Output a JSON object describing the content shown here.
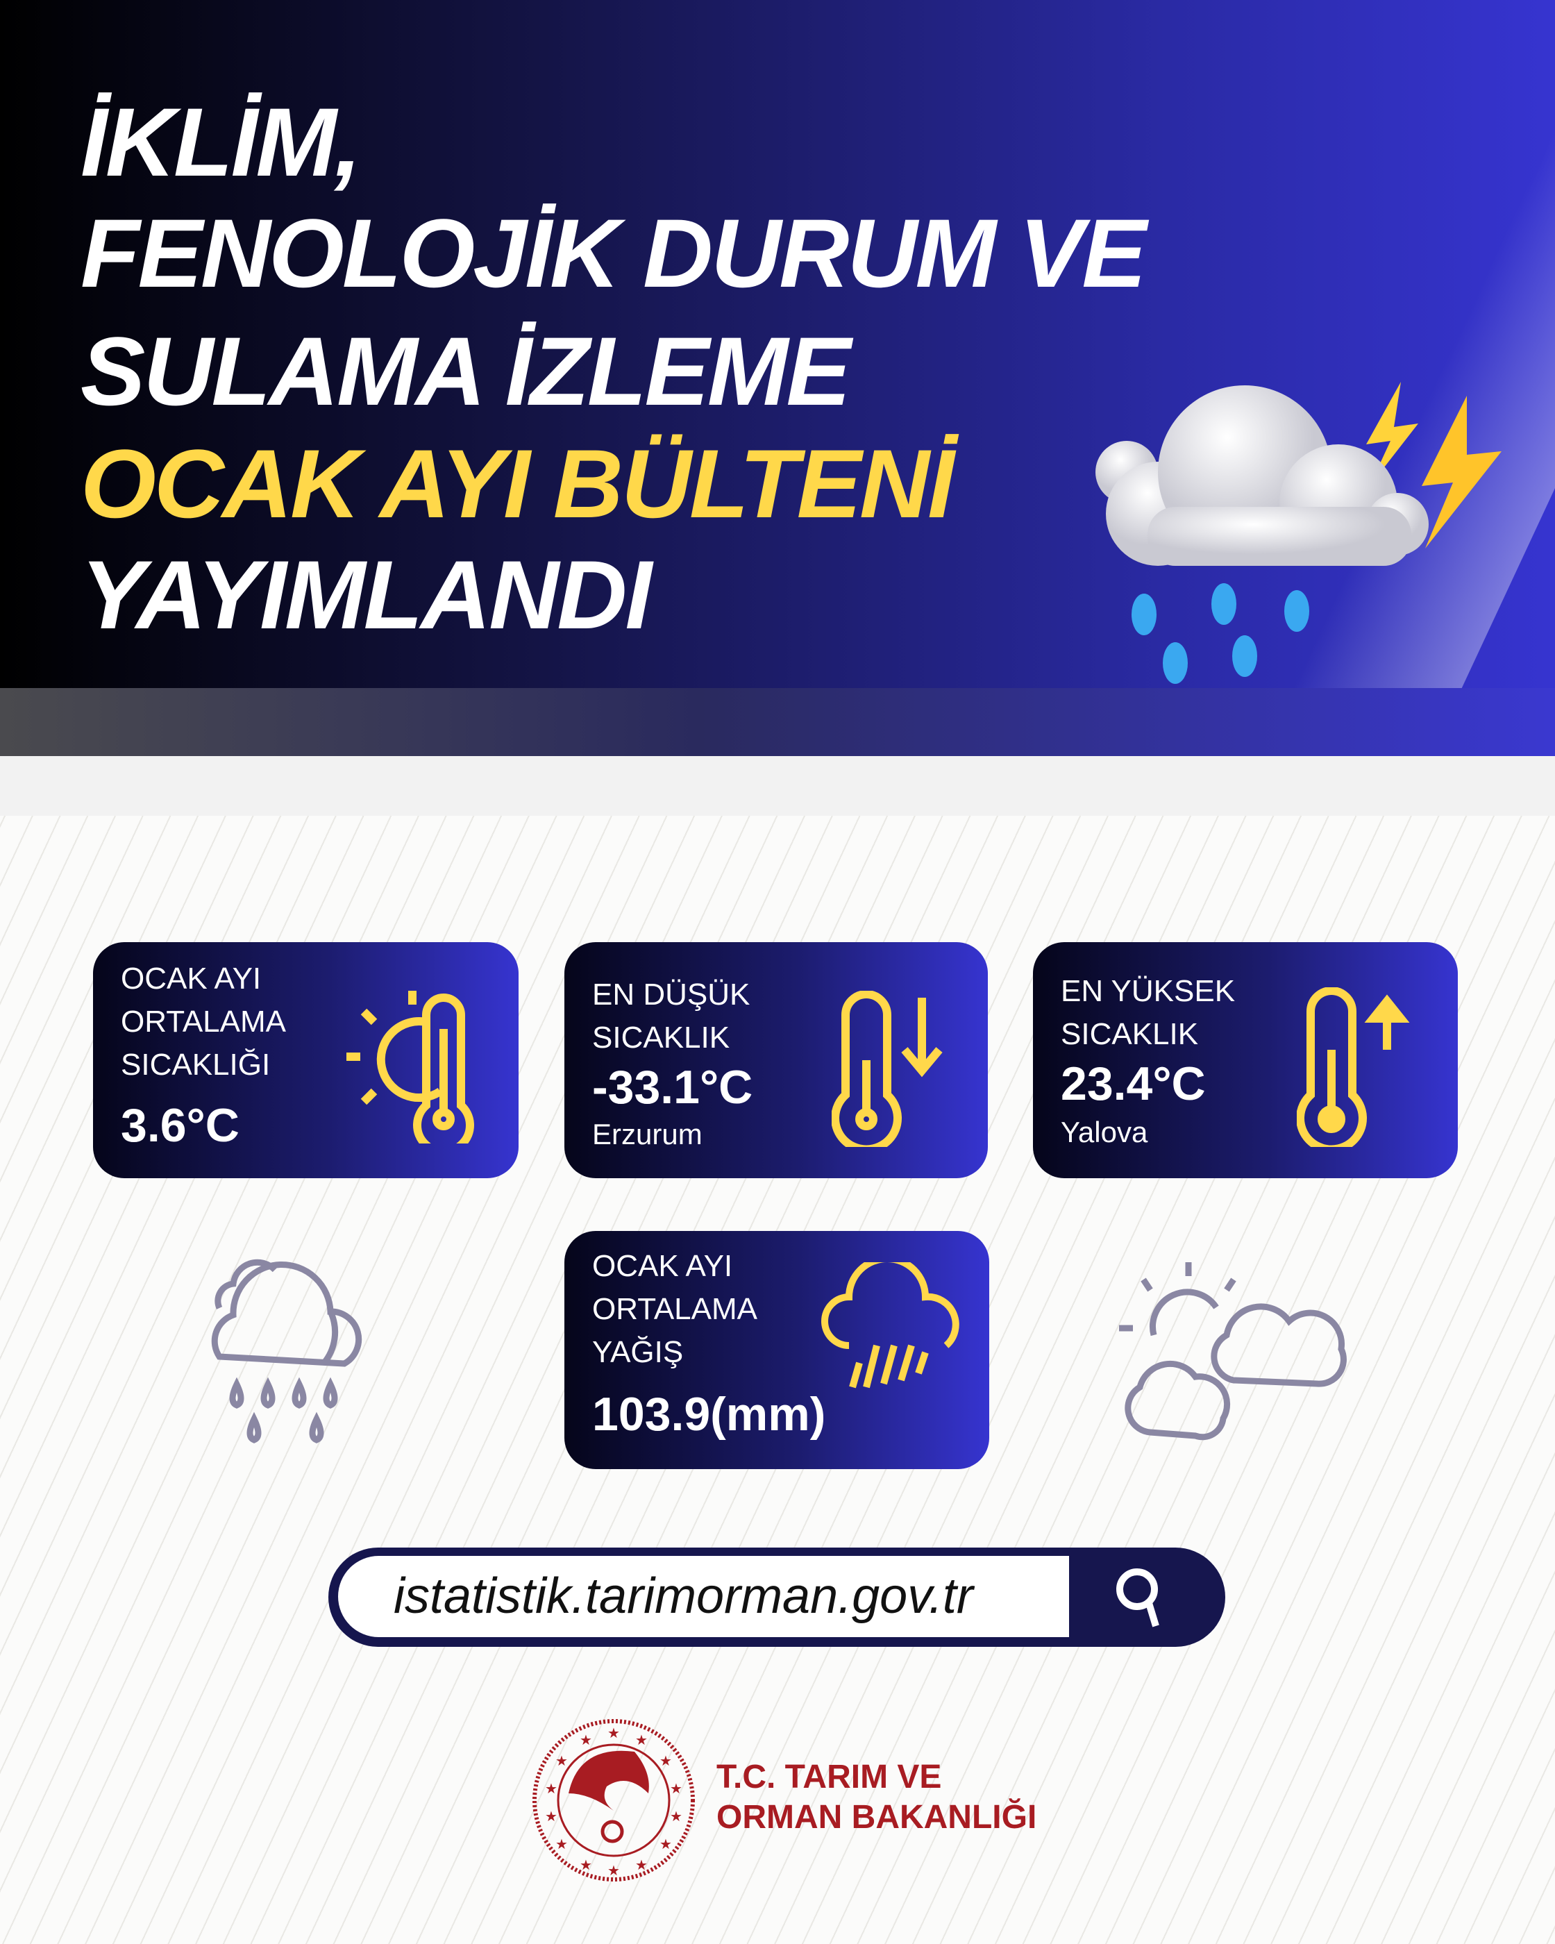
{
  "header": {
    "title_lines": [
      "İKLİM,",
      "FENOLOJİK DURUM VE",
      "SULAMA İZLEME"
    ],
    "highlight": "OCAK AYI BÜLTENİ",
    "last_line": "YAYIMLANDI"
  },
  "colors": {
    "accent": "#ffd84a",
    "navy": "#16164e",
    "blue": "#3634d0",
    "brand_red": "#a81c22",
    "icon_gray": "#8a87a3"
  },
  "cards": [
    {
      "label_lines": [
        "OCAK AYI",
        "ORTALAMA",
        "SICAKLIĞI"
      ],
      "value": "3.6°C",
      "icon": "sun-thermometer-icon"
    },
    {
      "label_lines": [
        "EN DÜŞÜK",
        "SICAKLIK"
      ],
      "value": "-33.1°C",
      "location": "Erzurum",
      "icon": "thermometer-down-icon"
    },
    {
      "label_lines": [
        "EN YÜKSEK",
        "SICAKLIK"
      ],
      "value": "23.4°C",
      "location": "Yalova",
      "icon": "thermometer-up-icon"
    },
    {
      "label_lines": [
        "OCAK AYI",
        "ORTALAMA",
        "YAĞIŞ"
      ],
      "value": "103.9(mm)",
      "icon": "cloud-rain-icon"
    }
  ],
  "search": {
    "value": "istatistik.tarimorman.gov.tr",
    "icon": "search-icon"
  },
  "logo": {
    "lines": [
      "T.C. TARIM VE",
      "ORMAN BAKANLIĞI"
    ]
  }
}
